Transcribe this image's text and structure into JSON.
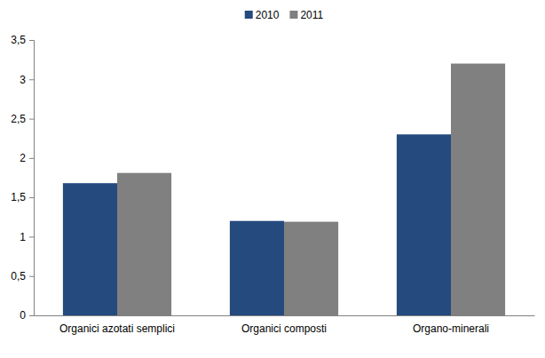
{
  "chart_data": {
    "type": "bar",
    "categories": [
      "Organici azotati semplici",
      "Organici composti",
      "Organo-minerali"
    ],
    "series": [
      {
        "name": "2010",
        "color": "#244a7e",
        "values": [
          1.68,
          1.2,
          2.3
        ]
      },
      {
        "name": "2011",
        "color": "#808080",
        "values": [
          1.81,
          1.19,
          3.2
        ]
      }
    ],
    "ylim": [
      0,
      3.5
    ],
    "yticks": [
      0,
      {
        "value": 0.5,
        "label": "0,5"
      },
      1,
      {
        "value": 1.5,
        "label": "1,5"
      },
      2,
      {
        "value": 2.5,
        "label": "2,5"
      },
      3,
      {
        "value": 3.5,
        "label": "3,5"
      }
    ],
    "grid": false,
    "legend": "top"
  }
}
